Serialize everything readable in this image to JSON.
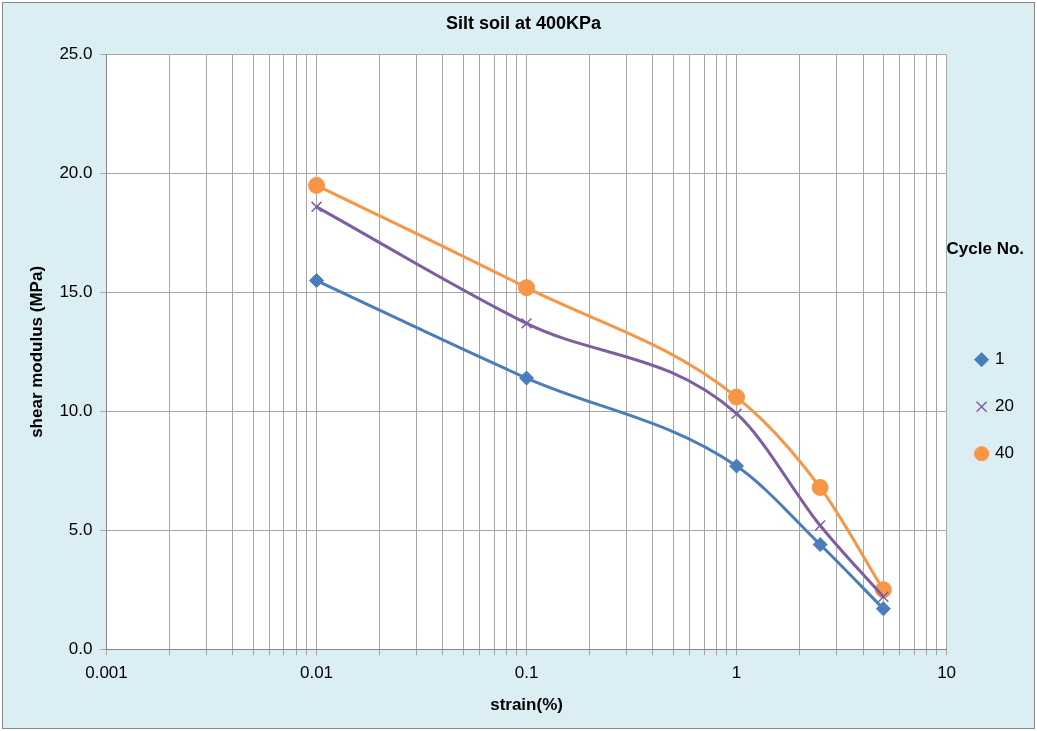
{
  "chart_data": {
    "type": "line",
    "title": "Silt soil at 400KPa",
    "xlabel": "strain(%)",
    "ylabel": "shear modulus (MPa)",
    "legend_title": "Cycle No.",
    "legend": "right",
    "log": "x",
    "grid": true,
    "x": [
      0.01,
      0.1,
      1,
      2.5,
      5
    ],
    "series": [
      {
        "name": "1",
        "color": "#4a7ebb",
        "marker": "diamond",
        "values": [
          15.5,
          11.4,
          7.7,
          4.4,
          1.7
        ]
      },
      {
        "name": "20",
        "color": "#7d5fa0",
        "marker": "cross",
        "values": [
          18.6,
          13.7,
          9.9,
          5.2,
          2.2
        ]
      },
      {
        "name": "40",
        "color": "#f79646",
        "marker": "circle",
        "values": [
          19.5,
          15.2,
          10.6,
          6.8,
          2.5
        ]
      }
    ],
    "xlim": [
      0.001,
      10
    ],
    "xticks": [
      0.001,
      {
        "value": 0.002,
        "label": null
      },
      {
        "value": 0.003,
        "label": null
      },
      {
        "value": 0.004,
        "label": null
      },
      {
        "value": 0.005,
        "label": null
      },
      {
        "value": 0.006,
        "label": null
      },
      {
        "value": 0.007,
        "label": null
      },
      {
        "value": 0.008,
        "label": null
      },
      {
        "value": 0.009,
        "label": null
      },
      0.01,
      {
        "value": 0.02,
        "label": null
      },
      {
        "value": 0.03,
        "label": null
      },
      {
        "value": 0.04,
        "label": null
      },
      {
        "value": 0.05,
        "label": null
      },
      {
        "value": 0.06,
        "label": null
      },
      {
        "value": 0.07,
        "label": null
      },
      {
        "value": 0.08,
        "label": null
      },
      {
        "value": 0.09,
        "label": null
      },
      0.1,
      {
        "value": 0.2,
        "label": null
      },
      {
        "value": 0.3,
        "label": null
      },
      {
        "value": 0.4,
        "label": null
      },
      {
        "value": 0.5,
        "label": null
      },
      {
        "value": 0.6,
        "label": null
      },
      {
        "value": 0.7,
        "label": null
      },
      {
        "value": 0.8,
        "label": null
      },
      {
        "value": 0.9,
        "label": null
      },
      1,
      {
        "value": 2,
        "label": null
      },
      {
        "value": 3,
        "label": null
      },
      {
        "value": 4,
        "label": null
      },
      {
        "value": 5,
        "label": null
      },
      {
        "value": 6,
        "label": null
      },
      {
        "value": 7,
        "label": null
      },
      {
        "value": 8,
        "label": null
      },
      {
        "value": 9,
        "label": null
      },
      10
    ],
    "ylim": [
      0,
      25
    ],
    "yticks": [
      {
        "value": 0,
        "label": "0.0"
      },
      {
        "value": 5,
        "label": "5.0"
      },
      {
        "value": 10,
        "label": "10.0"
      },
      {
        "value": 15,
        "label": "15.0"
      },
      {
        "value": 20,
        "label": "20.0"
      },
      {
        "value": 25,
        "label": "25.0"
      }
    ]
  }
}
